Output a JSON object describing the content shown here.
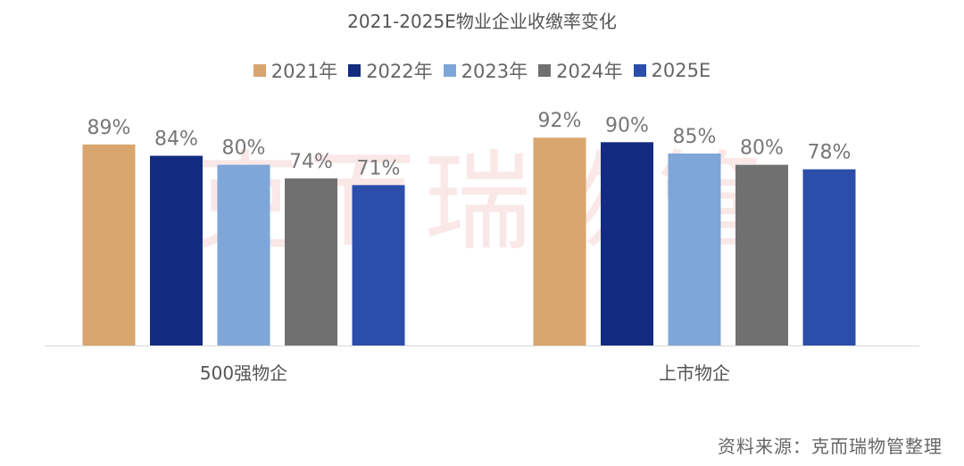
{
  "chart_data": {
    "type": "bar",
    "title": "2021-2025E物业企业收缴率变化",
    "categories": [
      "500强物企",
      "上市物企"
    ],
    "series": [
      {
        "name": "2021年",
        "values": [
          89,
          92
        ],
        "labels": [
          "89%",
          "92%"
        ],
        "color": "#D9A56E"
      },
      {
        "name": "2022年",
        "values": [
          84,
          90
        ],
        "labels": [
          "84%",
          "90%"
        ],
        "color": "#132C80"
      },
      {
        "name": "2023年",
        "values": [
          80,
          85
        ],
        "labels": [
          "80%",
          "85%"
        ],
        "color": "#7EA6D8"
      },
      {
        "name": "2024年",
        "values": [
          74,
          80
        ],
        "labels": [
          "74%",
          "80%"
        ],
        "color": "#707070"
      },
      {
        "name": "2025E",
        "values": [
          71,
          78
        ],
        "labels": [
          "71%",
          "78%"
        ],
        "color": "#2A4EAA"
      }
    ],
    "ylim": [
      0,
      100
    ],
    "grid": false,
    "legend_position": "top-center",
    "xlabel": "",
    "ylabel": ""
  },
  "source": "资料来源：克而瑞物管整理",
  "watermark": "克而瑞物管"
}
